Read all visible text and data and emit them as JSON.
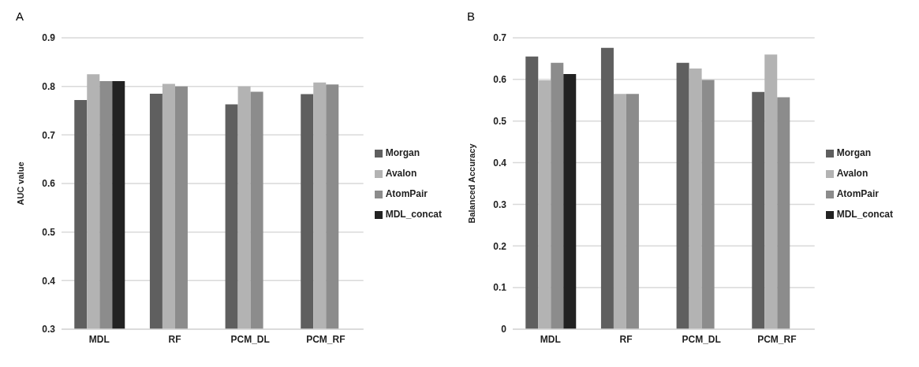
{
  "chart_data": [
    {
      "type": "bar",
      "title": "A",
      "ylabel": "AUC value",
      "categories": [
        "MDL",
        "RF",
        "PCM_DL",
        "PCM_RF"
      ],
      "series": [
        {
          "name": "Morgan",
          "color": "#5f5f5f",
          "values": [
            0.772,
            0.785,
            0.763,
            0.784
          ]
        },
        {
          "name": "Avalon",
          "color": "#b3b3b3",
          "values": [
            0.825,
            0.805,
            0.8,
            0.808
          ]
        },
        {
          "name": "AtomPair",
          "color": "#8c8c8c",
          "values": [
            0.811,
            0.8,
            0.789,
            0.804
          ]
        },
        {
          "name": "MDL_concat",
          "color": "#222222",
          "values": [
            0.811,
            null,
            null,
            null
          ]
        }
      ],
      "ylim": [
        0.3,
        0.9
      ],
      "yticks": [
        0.3,
        0.4,
        0.5,
        0.6,
        0.7,
        0.8,
        0.9
      ],
      "grid": "y",
      "legend": "right"
    },
    {
      "type": "bar",
      "title": "B",
      "ylabel": "Balanced Accuracy",
      "categories": [
        "MDL",
        "RF",
        "PCM_DL",
        "PCM_RF"
      ],
      "series": [
        {
          "name": "Morgan",
          "color": "#5f5f5f",
          "values": [
            0.655,
            0.676,
            0.64,
            0.57
          ]
        },
        {
          "name": "Avalon",
          "color": "#b3b3b3",
          "values": [
            0.598,
            0.565,
            0.626,
            0.66
          ]
        },
        {
          "name": "AtomPair",
          "color": "#8c8c8c",
          "values": [
            0.64,
            0.565,
            0.599,
            0.557
          ]
        },
        {
          "name": "MDL_concat",
          "color": "#222222",
          "values": [
            0.613,
            null,
            null,
            null
          ]
        }
      ],
      "ylim": [
        0,
        0.7
      ],
      "yticks": [
        0,
        0.1,
        0.2,
        0.3,
        0.4,
        0.5,
        0.6,
        0.7
      ],
      "grid": "y",
      "legend": "right"
    }
  ]
}
